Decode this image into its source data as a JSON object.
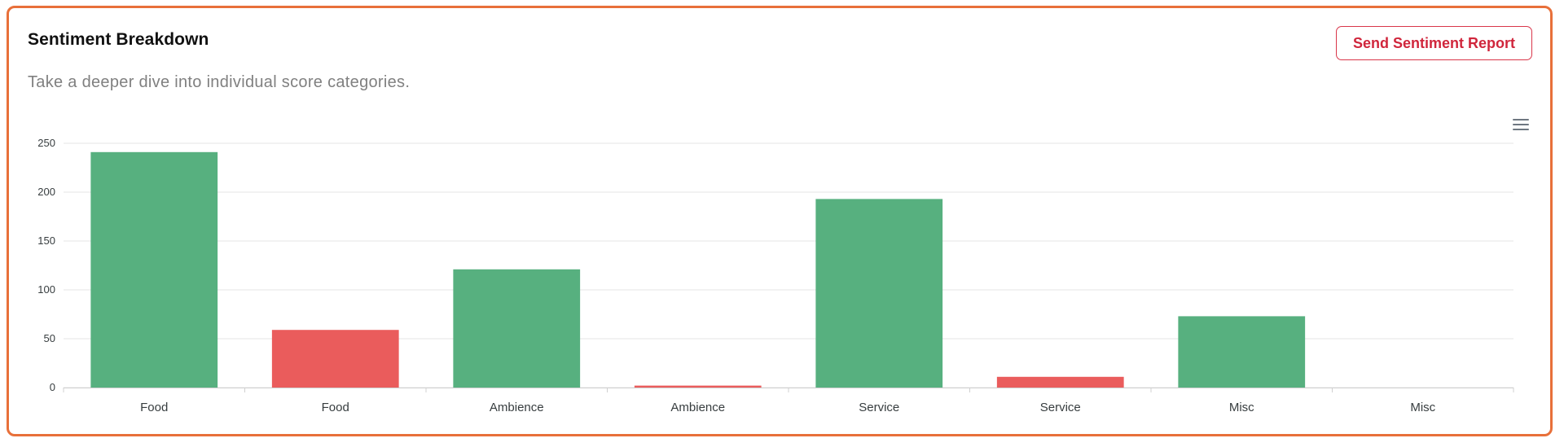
{
  "header": {
    "title": "Sentiment Breakdown",
    "subtitle": "Take a deeper dive into individual score categories.",
    "report_button_label": "Send Sentiment Report"
  },
  "toolbar": {
    "menu_icon": "hamburger-menu-icon"
  },
  "colors": {
    "positive": "#57b07f",
    "negative": "#ea5c5c",
    "card_border": "#e8703a",
    "button": "#d0263c"
  },
  "chart_data": {
    "type": "bar",
    "categories": [
      "Food",
      "Food",
      "Ambience",
      "Ambience",
      "Service",
      "Service",
      "Misc",
      "Misc"
    ],
    "values": [
      241,
      59,
      121,
      2,
      193,
      11,
      73,
      0
    ],
    "sentiment": [
      "positive",
      "negative",
      "positive",
      "negative",
      "positive",
      "negative",
      "positive",
      "negative"
    ],
    "title": "",
    "xlabel": "",
    "ylabel": "",
    "ylim": [
      0,
      250
    ],
    "yticks": [
      0,
      50,
      100,
      150,
      200,
      250
    ],
    "grid": true
  }
}
